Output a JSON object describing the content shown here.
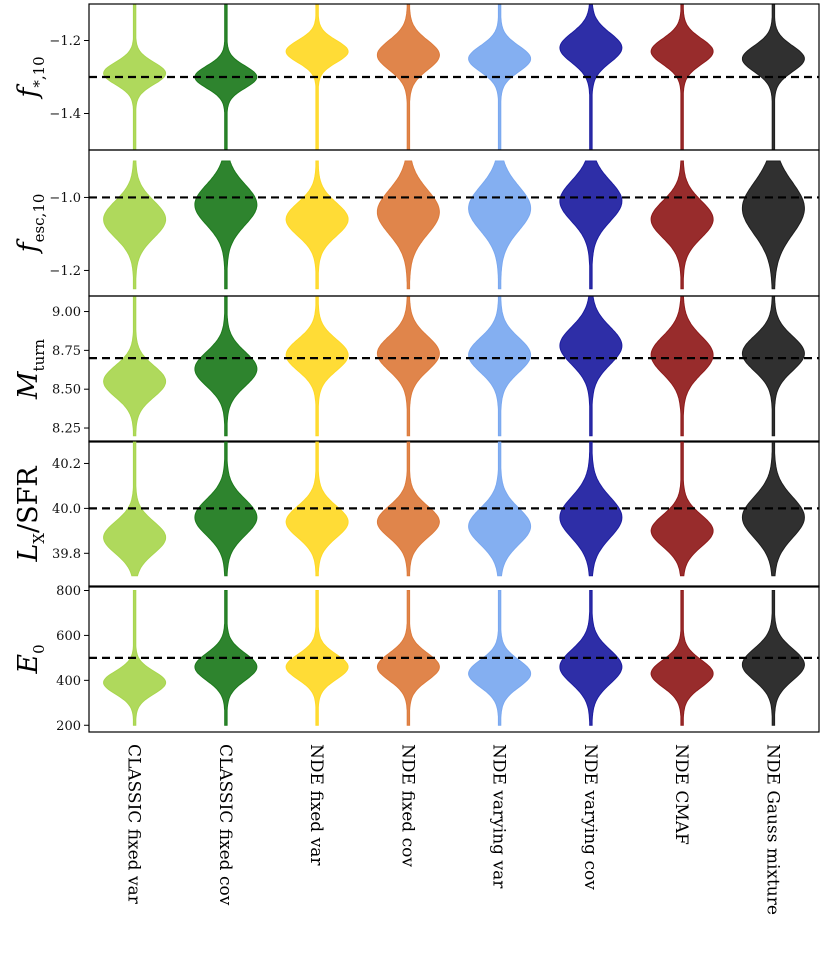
{
  "chart_data": {
    "type": "violin",
    "categories": [
      "CLASSIC fixed var",
      "CLASSIC fixed cov",
      "NDE fixed var",
      "NDE fixed cov",
      "NDE varying var",
      "NDE varying cov",
      "NDE CMAF",
      "NDE Gauss mixture"
    ],
    "colors": [
      "#a8d64e",
      "#1c7a1c",
      "#ffd925",
      "#dd7b3c",
      "#7aa8f0",
      "#1c1ca0",
      "#8f1a1a",
      "#1e1e1e"
    ],
    "panels": [
      {
        "ylabel_main": "f",
        "ylabel_sub": "*,10",
        "ylim": [
          -1.5,
          -1.1
        ],
        "ticks": [
          -1.4,
          -1.2
        ],
        "tick_labels": [
          "−1.4",
          "−1.2"
        ],
        "truth": -1.3,
        "stats": [
          {
            "median": -1.29,
            "spread": 0.03,
            "lo": -1.5,
            "hi": -1.1
          },
          {
            "median": -1.3,
            "spread": 0.03,
            "lo": -1.5,
            "hi": -1.1
          },
          {
            "median": -1.23,
            "spread": 0.03,
            "lo": -1.5,
            "hi": -1.1
          },
          {
            "median": -1.24,
            "spread": 0.04,
            "lo": -1.5,
            "hi": -1.1
          },
          {
            "median": -1.25,
            "spread": 0.035,
            "lo": -1.5,
            "hi": -1.1
          },
          {
            "median": -1.22,
            "spread": 0.04,
            "lo": -1.5,
            "hi": -1.1
          },
          {
            "median": -1.23,
            "spread": 0.035,
            "lo": -1.5,
            "hi": -1.1
          },
          {
            "median": -1.25,
            "spread": 0.035,
            "lo": -1.5,
            "hi": -1.1
          }
        ]
      },
      {
        "ylabel_main": "f",
        "ylabel_sub": "esc,10",
        "ylim": [
          -1.27,
          -0.87
        ],
        "ticks": [
          -1.2,
          -1.0
        ],
        "tick_labels": [
          "−1.2",
          "−1.0"
        ],
        "truth": -1.0,
        "stats": [
          {
            "median": -1.06,
            "spread": 0.05,
            "lo": -1.25,
            "hi": -0.9
          },
          {
            "median": -1.02,
            "spread": 0.055,
            "lo": -1.25,
            "hi": -0.9
          },
          {
            "median": -1.06,
            "spread": 0.045,
            "lo": -1.25,
            "hi": -0.9
          },
          {
            "median": -1.04,
            "spread": 0.06,
            "lo": -1.25,
            "hi": -0.9
          },
          {
            "median": -1.03,
            "spread": 0.06,
            "lo": -1.25,
            "hi": -0.9
          },
          {
            "median": -1.01,
            "spread": 0.055,
            "lo": -1.25,
            "hi": -0.9
          },
          {
            "median": -1.06,
            "spread": 0.05,
            "lo": -1.25,
            "hi": -0.9
          },
          {
            "median": -1.03,
            "spread": 0.07,
            "lo": -1.25,
            "hi": -0.9
          }
        ]
      },
      {
        "ylabel_main": "M",
        "ylabel_sub": "turn",
        "ylim": [
          8.16,
          9.1
        ],
        "ticks": [
          8.25,
          8.5,
          8.75,
          9.0
        ],
        "tick_labels": [
          "8.25",
          "8.50",
          "8.75",
          "9.00"
        ],
        "truth": 8.7,
        "stats": [
          {
            "median": 8.55,
            "spread": 0.1,
            "lo": 8.2,
            "hi": 9.1
          },
          {
            "median": 8.63,
            "spread": 0.11,
            "lo": 8.2,
            "hi": 9.1
          },
          {
            "median": 8.72,
            "spread": 0.1,
            "lo": 8.2,
            "hi": 9.1
          },
          {
            "median": 8.73,
            "spread": 0.11,
            "lo": 8.2,
            "hi": 9.1
          },
          {
            "median": 8.72,
            "spread": 0.11,
            "lo": 8.2,
            "hi": 9.1
          },
          {
            "median": 8.78,
            "spread": 0.12,
            "lo": 8.2,
            "hi": 9.1
          },
          {
            "median": 8.72,
            "spread": 0.12,
            "lo": 8.2,
            "hi": 9.1
          },
          {
            "median": 8.73,
            "spread": 0.11,
            "lo": 8.2,
            "hi": 9.1
          }
        ]
      },
      {
        "ylabel_main": "L",
        "ylabel_sub": "X",
        "ylabel_suffix": "/SFR",
        "ylim": [
          39.65,
          40.3
        ],
        "ticks": [
          39.8,
          40.0,
          40.2
        ],
        "tick_labels": [
          "39.8",
          "40.0",
          "40.2"
        ],
        "truth": 40.0,
        "stats": [
          {
            "median": 39.87,
            "spread": 0.07,
            "lo": 39.7,
            "hi": 40.3
          },
          {
            "median": 39.96,
            "spread": 0.08,
            "lo": 39.7,
            "hi": 40.3
          },
          {
            "median": 39.94,
            "spread": 0.07,
            "lo": 39.7,
            "hi": 40.3
          },
          {
            "median": 39.94,
            "spread": 0.07,
            "lo": 39.7,
            "hi": 40.3
          },
          {
            "median": 39.92,
            "spread": 0.08,
            "lo": 39.7,
            "hi": 40.3
          },
          {
            "median": 39.96,
            "spread": 0.09,
            "lo": 39.7,
            "hi": 40.3
          },
          {
            "median": 39.9,
            "spread": 0.07,
            "lo": 39.7,
            "hi": 40.3
          },
          {
            "median": 39.96,
            "spread": 0.09,
            "lo": 39.7,
            "hi": 40.3
          }
        ]
      },
      {
        "ylabel_main": "E",
        "ylabel_sub": "0",
        "ylim": [
          170,
          820
        ],
        "ticks": [
          200,
          400,
          600,
          800
        ],
        "tick_labels": [
          "200",
          "400",
          "600",
          "800"
        ],
        "truth": 500,
        "stats": [
          {
            "median": 390,
            "spread": 50,
            "lo": 200,
            "hi": 800
          },
          {
            "median": 460,
            "spread": 60,
            "lo": 200,
            "hi": 800
          },
          {
            "median": 460,
            "spread": 55,
            "lo": 200,
            "hi": 800
          },
          {
            "median": 460,
            "spread": 60,
            "lo": 200,
            "hi": 800
          },
          {
            "median": 430,
            "spread": 60,
            "lo": 200,
            "hi": 800
          },
          {
            "median": 460,
            "spread": 75,
            "lo": 200,
            "hi": 800
          },
          {
            "median": 430,
            "spread": 60,
            "lo": 200,
            "hi": 800
          },
          {
            "median": 470,
            "spread": 70,
            "lo": 200,
            "hi": 800
          }
        ]
      }
    ]
  }
}
